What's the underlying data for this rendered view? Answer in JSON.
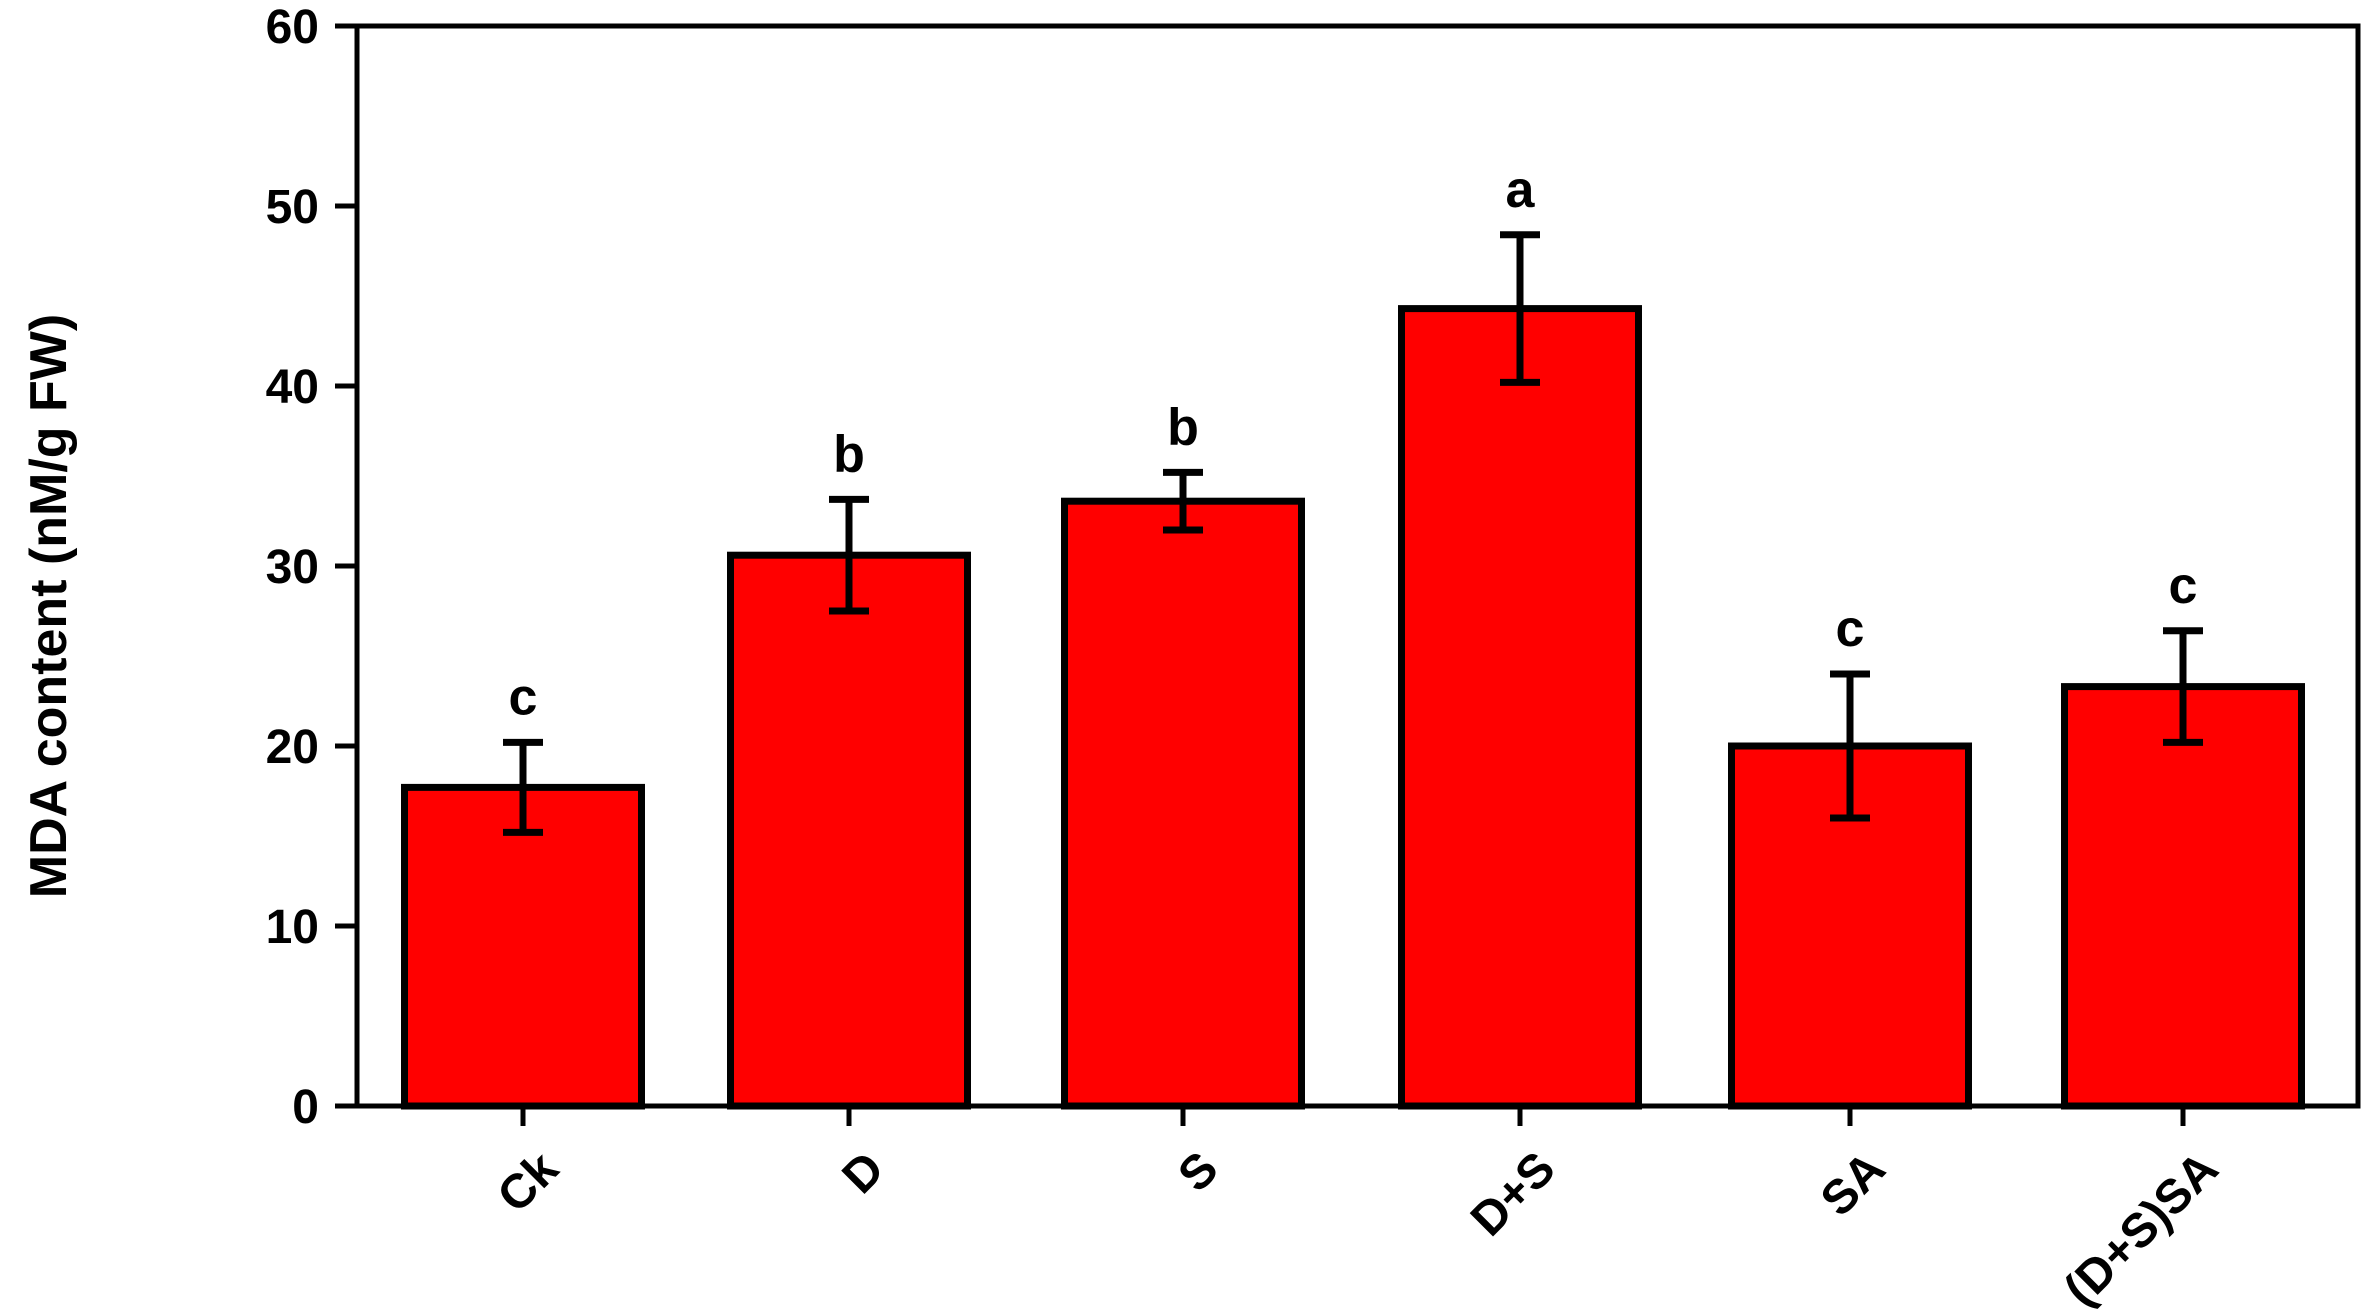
{
  "chart_data": {
    "type": "bar",
    "title": "",
    "xlabel": "",
    "ylabel": "MDA content (nM/g FW)",
    "ylim": [
      0,
      60
    ],
    "yticks": [
      0,
      10,
      20,
      30,
      40,
      50,
      60
    ],
    "categories": [
      "Ck",
      "D",
      "S",
      "D+S",
      "SA",
      "(D+S)SA"
    ],
    "values": [
      17.7,
      30.6,
      33.6,
      44.3,
      20.0,
      23.3
    ],
    "errors": [
      2.5,
      3.1,
      1.6,
      4.1,
      4.0,
      3.1
    ],
    "significance": [
      "c",
      "b",
      "b",
      "a",
      "c",
      "c"
    ],
    "bar_color": "#ff0000",
    "grid": false,
    "legend": "none"
  }
}
